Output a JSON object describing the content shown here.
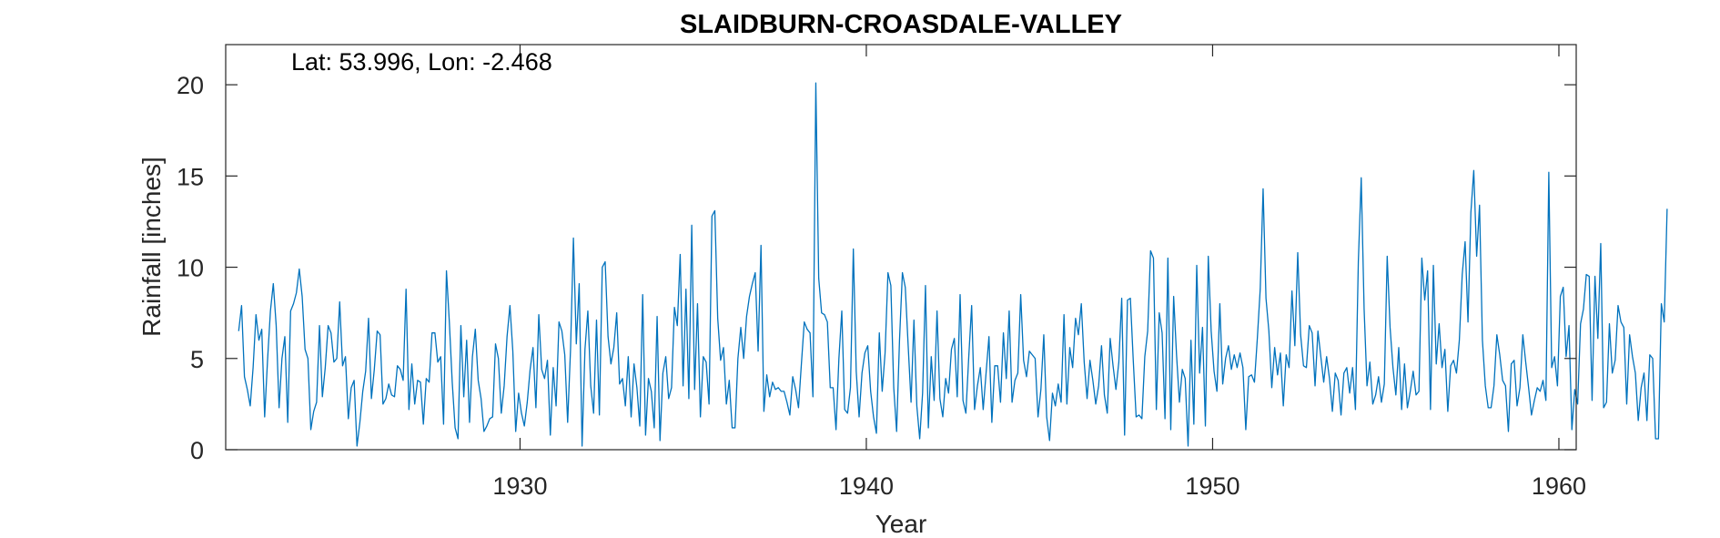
{
  "chart_data": {
    "type": "line",
    "title": "SLAIDBURN-CROASDALE-VALLEY",
    "xlabel": "Year",
    "ylabel": "Rainfall [inches]",
    "annotation": "Lat: 53.996, Lon: -2.468",
    "xlim": [
      1921.5,
      1960.5
    ],
    "ylim": [
      0,
      22.2
    ],
    "xticks": [
      1930,
      1940,
      1950,
      1960
    ],
    "yticks": [
      0,
      5,
      10,
      15,
      20
    ],
    "grid": false,
    "box": true,
    "series": [
      {
        "color": "#0072BD",
        "x_start": 1921.875,
        "x_step": 0.0833333,
        "values": [
          6.5,
          7.9,
          4.0,
          3.3,
          2.4,
          4.5,
          7.4,
          6.0,
          6.6,
          1.8,
          4.9,
          7.6,
          9.1,
          6.8,
          2.3,
          5.0,
          6.2,
          1.5,
          7.6,
          8.0,
          8.6,
          9.9,
          8.4,
          5.5,
          5.0,
          1.1,
          2.1,
          2.6,
          6.8,
          2.9,
          4.5,
          6.8,
          6.4,
          4.8,
          5.0,
          8.1,
          4.6,
          5.1,
          1.7,
          3.4,
          3.8,
          0.2,
          1.5,
          3.2,
          4.3,
          7.2,
          2.8,
          4.4,
          6.5,
          6.3,
          2.5,
          2.8,
          3.6,
          3.0,
          2.9,
          4.6,
          4.4,
          3.8,
          8.8,
          2.2,
          4.7,
          2.5,
          3.8,
          3.7,
          1.4,
          3.9,
          3.7,
          6.4,
          6.4,
          4.8,
          5.1,
          1.4,
          9.8,
          7.0,
          3.7,
          1.2,
          0.6,
          6.8,
          2.9,
          6.0,
          1.5,
          5.1,
          6.6,
          3.8,
          2.8,
          1.0,
          1.3,
          1.7,
          1.8,
          5.8,
          5.0,
          2.0,
          3.5,
          6.2,
          7.9,
          5.4,
          1.0,
          3.1,
          2.0,
          1.3,
          2.6,
          4.4,
          5.6,
          2.3,
          7.4,
          4.4,
          3.9,
          4.9,
          0.8,
          4.5,
          2.4,
          7.0,
          6.5,
          5.2,
          1.5,
          5.5,
          11.6,
          5.8,
          9.1,
          0.2,
          5.5,
          7.6,
          3.5,
          2.0,
          7.1,
          1.9,
          10.0,
          10.3,
          6.2,
          4.7,
          5.6,
          7.5,
          3.6,
          3.9,
          2.4,
          5.1,
          1.8,
          4.7,
          3.4,
          1.3,
          8.5,
          0.8,
          3.9,
          3.2,
          1.2,
          7.3,
          0.5,
          4.2,
          5.1,
          2.8,
          3.4,
          7.8,
          6.8,
          10.7,
          3.5,
          8.8,
          2.8,
          12.3,
          3.3,
          8.0,
          1.8,
          5.1,
          4.8,
          2.5,
          12.8,
          13.1,
          7.2,
          4.9,
          5.6,
          2.5,
          3.8,
          1.2,
          1.2,
          5.0,
          6.7,
          5.0,
          7.3,
          8.4,
          9.1,
          9.7,
          5.4,
          11.2,
          2.1,
          4.1,
          2.9,
          3.7,
          3.3,
          3.4,
          3.2,
          3.2,
          2.6,
          1.9,
          4.0,
          3.3,
          2.3,
          4.7,
          7.0,
          6.6,
          6.4,
          2.9,
          20.1,
          9.4,
          7.5,
          7.4,
          7.0,
          3.4,
          3.4,
          1.1,
          5.0,
          7.6,
          2.2,
          2.0,
          3.4,
          11.0,
          4.3,
          1.8,
          4.2,
          5.3,
          5.7,
          3.2,
          1.8,
          0.9,
          6.4,
          3.2,
          5.3,
          9.7,
          9.0,
          3.4,
          1.0,
          6.0,
          9.7,
          8.9,
          5.7,
          2.6,
          7.1,
          2.4,
          0.6,
          3.1,
          9.0,
          1.2,
          5.1,
          2.7,
          7.6,
          2.8,
          1.8,
          3.9,
          3.1,
          5.5,
          6.1,
          2.9,
          8.5,
          2.7,
          2.0,
          5.1,
          7.9,
          2.2,
          3.5,
          4.5,
          2.2,
          4.2,
          6.2,
          1.5,
          4.6,
          4.6,
          2.6,
          6.4,
          3.9,
          7.6,
          2.6,
          3.8,
          4.2,
          8.5,
          4.9,
          4.0,
          5.4,
          5.2,
          5.0,
          1.8,
          3.3,
          6.3,
          1.8,
          0.5,
          3.1,
          2.4,
          3.6,
          2.6,
          7.4,
          2.5,
          5.6,
          4.5,
          7.2,
          6.3,
          8.0,
          4.8,
          2.8,
          4.9,
          3.8,
          2.5,
          3.5,
          5.7,
          3.0,
          2.0,
          6.1,
          4.6,
          3.3,
          4.8,
          8.3,
          0.8,
          8.2,
          8.3,
          4.9,
          1.8,
          1.9,
          1.7,
          5.1,
          6.5,
          10.9,
          10.5,
          2.2,
          7.5,
          6.4,
          1.7,
          10.5,
          1.1,
          8.4,
          5.2,
          2.6,
          4.4,
          3.9,
          0.2,
          6.0,
          1.4,
          10.1,
          4.2,
          6.7,
          1.3,
          10.6,
          6.5,
          4.3,
          3.2,
          8.0,
          3.6,
          5.0,
          5.7,
          4.4,
          5.2,
          4.5,
          5.3,
          4.5,
          1.1,
          4.0,
          4.1,
          3.7,
          6.1,
          8.8,
          14.3,
          8.3,
          6.5,
          3.4,
          5.6,
          4.1,
          5.3,
          2.4,
          5.2,
          4.5,
          8.7,
          5.7,
          10.8,
          6.3,
          4.6,
          4.5,
          6.8,
          6.4,
          3.5,
          6.5,
          5.1,
          3.7,
          5.1,
          3.9,
          2.1,
          4.2,
          3.8,
          1.9,
          4.2,
          4.5,
          3.1,
          4.5,
          2.2,
          10.3,
          14.9,
          7.7,
          3.5,
          4.8,
          2.5,
          3.0,
          4.0,
          2.6,
          3.6,
          10.6,
          6.7,
          4.5,
          3.0,
          5.6,
          2.2,
          4.7,
          2.3,
          3.2,
          4.3,
          3.0,
          3.2,
          10.5,
          8.2,
          9.8,
          2.2,
          10.1,
          4.7,
          6.9,
          4.5,
          5.5,
          2.1,
          4.6,
          4.9,
          4.2,
          6.0,
          9.6,
          11.4,
          7.0,
          13.0,
          15.3,
          10.6,
          13.4,
          6.0,
          3.5,
          2.3,
          2.3,
          3.5,
          6.3,
          5.2,
          3.8,
          3.5,
          1.0,
          4.7,
          4.9,
          2.4,
          3.4,
          6.3,
          4.8,
          3.4,
          1.9,
          2.7,
          3.4,
          3.2,
          3.8,
          2.7,
          15.2,
          4.5,
          5.1,
          3.5,
          8.4,
          8.9,
          5.1,
          6.8,
          1.1,
          3.3,
          2.5,
          6.9,
          7.7,
          9.6,
          9.5,
          2.7,
          9.5,
          6.1,
          11.3,
          2.3,
          2.6,
          6.9,
          4.2,
          4.9,
          7.9,
          7.0,
          6.7,
          2.5,
          6.3,
          5.1,
          4.2,
          1.6,
          3.4,
          4.2,
          1.6,
          5.2,
          5.0,
          0.6,
          0.6,
          8.0,
          7.0,
          13.2
        ]
      }
    ]
  }
}
